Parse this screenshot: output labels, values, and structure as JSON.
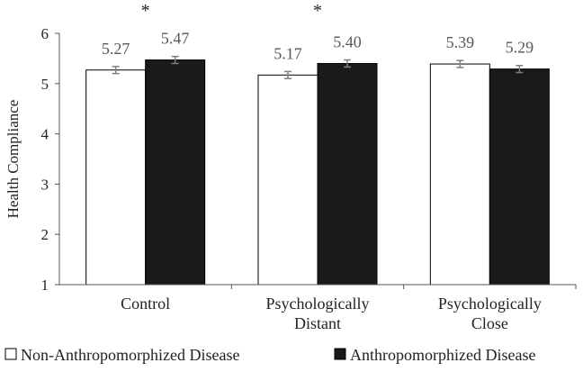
{
  "chart_data": {
    "type": "bar",
    "title": "",
    "xlabel": "",
    "ylabel": "Health Compliance",
    "ylim": [
      1,
      6
    ],
    "yticks": [
      1,
      2,
      3,
      4,
      5,
      6
    ],
    "grid": false,
    "legend_position": "bottom",
    "categories": [
      [
        "Control"
      ],
      [
        "Psychologically",
        "Distant"
      ],
      [
        "Psychologically",
        "Close"
      ]
    ],
    "series": [
      {
        "name": "Non-Anthropomorphized Disease",
        "color": "#ffffff",
        "stroke": "#000000",
        "values": [
          5.27,
          5.17,
          5.39
        ],
        "labels": [
          "5.27",
          "5.17",
          "5.39"
        ],
        "error": [
          0.07,
          0.07,
          0.07
        ]
      },
      {
        "name": "Anthropomorphized Disease",
        "color": "#1a1a1a",
        "stroke": "#000000",
        "values": [
          5.47,
          5.4,
          5.29
        ],
        "labels": [
          "5.47",
          "5.40",
          "5.29"
        ],
        "error": [
          0.07,
          0.07,
          0.07
        ]
      }
    ],
    "significance": [
      "*",
      "*",
      ""
    ],
    "error_bar_color": "#7f7f7f"
  }
}
